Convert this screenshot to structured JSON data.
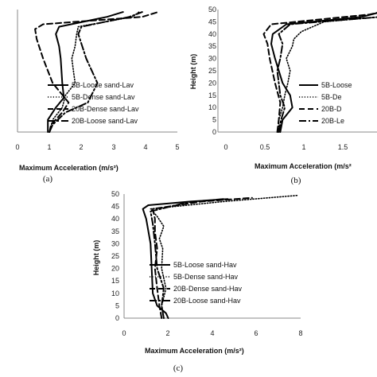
{
  "chart_data": [
    {
      "panel_label": "(a)",
      "type": "line",
      "xlabel": "Maximum Acceleration (m/s²)",
      "ylabel": "",
      "xlim": [
        0,
        5
      ],
      "ylim": [
        0,
        50
      ],
      "x_ticks": [
        "0",
        "1",
        "2",
        "3",
        "4",
        "5"
      ],
      "y_ticks": [],
      "legend_position": "right",
      "series": [
        {
          "name": "5B-Loose sand-Lav",
          "style": "solid",
          "points": [
            [
              0.95,
              0
            ],
            [
              0.95,
              5
            ],
            [
              1.2,
              10
            ],
            [
              1.45,
              14
            ],
            [
              1.4,
              20
            ],
            [
              1.35,
              30
            ],
            [
              1.3,
              35
            ],
            [
              1.2,
              40
            ],
            [
              1.3,
              43
            ],
            [
              2.8,
              47
            ],
            [
              3.3,
              49
            ]
          ]
        },
        {
          "name": "5B-Dense sand-Lav",
          "style": "dotted",
          "points": [
            [
              1.0,
              0
            ],
            [
              1.1,
              5
            ],
            [
              1.4,
              10
            ],
            [
              1.5,
              15
            ],
            [
              1.8,
              20
            ],
            [
              1.75,
              25
            ],
            [
              1.7,
              30
            ],
            [
              1.8,
              35
            ],
            [
              1.85,
              40
            ],
            [
              1.9,
              43
            ],
            [
              3.6,
              47
            ],
            [
              3.8,
              49
            ]
          ]
        },
        {
          "name": "20B-Dense sand-Lav",
          "style": "dashed",
          "points": [
            [
              1.0,
              0
            ],
            [
              1.05,
              3
            ],
            [
              1.4,
              8
            ],
            [
              1.6,
              12
            ],
            [
              1.1,
              20
            ],
            [
              0.8,
              30
            ],
            [
              0.6,
              38
            ],
            [
              0.55,
              42
            ],
            [
              0.8,
              44
            ],
            [
              3.9,
              47
            ],
            [
              4.4,
              49
            ]
          ]
        },
        {
          "name": "20B-Loose sand-Lav",
          "style": "dashdot",
          "points": [
            [
              1.0,
              0
            ],
            [
              1.1,
              3
            ],
            [
              1.5,
              8
            ],
            [
              2.2,
              12
            ],
            [
              2.5,
              20
            ],
            [
              2.15,
              30
            ],
            [
              1.9,
              40
            ],
            [
              2.0,
              43
            ],
            [
              3.5,
              47
            ],
            [
              3.9,
              49
            ]
          ]
        }
      ]
    },
    {
      "panel_label": "(b)",
      "type": "line",
      "xlabel": "Maximum Acceleration (m/s²",
      "ylabel": "Height (m)",
      "xlim": [
        0,
        2
      ],
      "ylim": [
        0,
        50
      ],
      "x_ticks": [
        "0",
        "0.5",
        "1",
        "1.5"
      ],
      "y_ticks": [
        "0",
        "5",
        "10",
        "15",
        "20",
        "25",
        "30",
        "35",
        "40",
        "45",
        "50"
      ],
      "legend_position": "right",
      "series": [
        {
          "name": "5B-Loose",
          "style": "solid",
          "points": [
            [
              0.72,
              0
            ],
            [
              0.75,
              5
            ],
            [
              0.88,
              10
            ],
            [
              0.85,
              15
            ],
            [
              0.75,
              20
            ],
            [
              0.65,
              30
            ],
            [
              0.6,
              36
            ],
            [
              0.62,
              40
            ],
            [
              0.8,
              44
            ],
            [
              1.8,
              47
            ],
            [
              2.05,
              49
            ]
          ]
        },
        {
          "name": "5B-De",
          "style": "dotted",
          "points": [
            [
              0.7,
              0
            ],
            [
              0.7,
              5
            ],
            [
              0.75,
              10
            ],
            [
              0.78,
              15
            ],
            [
              0.82,
              20
            ],
            [
              0.85,
              25
            ],
            [
              0.8,
              30
            ],
            [
              0.88,
              35
            ],
            [
              0.9,
              38
            ],
            [
              1.0,
              41
            ],
            [
              1.3,
              45
            ],
            [
              2.05,
              47
            ]
          ]
        },
        {
          "name": "20B-D",
          "style": "dashed",
          "points": [
            [
              0.68,
              0
            ],
            [
              0.7,
              5
            ],
            [
              0.72,
              12
            ],
            [
              0.65,
              20
            ],
            [
              0.58,
              30
            ],
            [
              0.55,
              36
            ],
            [
              0.5,
              40
            ],
            [
              0.6,
              44
            ],
            [
              1.9,
              48
            ],
            [
              2.05,
              49
            ]
          ]
        },
        {
          "name": "20B-Le",
          "style": "dashdot",
          "points": [
            [
              0.7,
              0
            ],
            [
              0.73,
              5
            ],
            [
              0.78,
              10
            ],
            [
              0.72,
              15
            ],
            [
              0.7,
              20
            ],
            [
              0.68,
              25
            ],
            [
              0.72,
              30
            ],
            [
              0.75,
              36
            ],
            [
              0.7,
              40
            ],
            [
              0.85,
              44
            ],
            [
              2.05,
              47
            ]
          ]
        }
      ]
    },
    {
      "panel_label": "(c)",
      "type": "line",
      "xlabel": "Maximum Acceleration (m/s²)",
      "ylabel": "Height (m)",
      "xlim": [
        0,
        8
      ],
      "ylim": [
        0,
        50
      ],
      "x_ticks": [
        "0",
        "2",
        "4",
        "6",
        "8"
      ],
      "y_ticks": [
        "0",
        "5",
        "10",
        "15",
        "20",
        "25",
        "30",
        "35",
        "40",
        "45",
        "50"
      ],
      "legend_position": "right",
      "series": [
        {
          "name": "5B-Loose sand-Hav",
          "style": "solid",
          "points": [
            [
              2.0,
              0
            ],
            [
              1.9,
              2
            ],
            [
              1.5,
              5
            ],
            [
              1.3,
              10
            ],
            [
              1.25,
              20
            ],
            [
              1.2,
              30
            ],
            [
              1.0,
              40
            ],
            [
              0.85,
              44
            ],
            [
              1.1,
              45.5
            ],
            [
              3.0,
              47
            ],
            [
              4.7,
              48
            ]
          ]
        },
        {
          "name": "5B-Dense sand-Hav",
          "style": "dotted",
          "points": [
            [
              1.8,
              0
            ],
            [
              1.7,
              5
            ],
            [
              1.9,
              12
            ],
            [
              1.7,
              20
            ],
            [
              1.75,
              28
            ],
            [
              1.6,
              32
            ],
            [
              1.8,
              37
            ],
            [
              1.5,
              41
            ],
            [
              1.2,
              44
            ],
            [
              4.5,
              47
            ],
            [
              7.9,
              49.5
            ]
          ]
        },
        {
          "name": "20B-Dense sand-Hav",
          "style": "dashed",
          "points": [
            [
              1.7,
              0
            ],
            [
              1.6,
              5
            ],
            [
              1.5,
              12
            ],
            [
              1.4,
              20
            ],
            [
              1.5,
              28
            ],
            [
              1.4,
              35
            ],
            [
              1.4,
              40
            ],
            [
              1.3,
              44
            ],
            [
              3.5,
              47
            ],
            [
              5.8,
              48.5
            ]
          ]
        },
        {
          "name": "20B-Loose sand-Hav",
          "style": "dashdot",
          "points": [
            [
              1.8,
              0
            ],
            [
              1.7,
              5
            ],
            [
              1.8,
              12
            ],
            [
              1.5,
              20
            ],
            [
              1.4,
              30
            ],
            [
              1.3,
              38
            ],
            [
              1.2,
              43
            ],
            [
              2.8,
              46.5
            ],
            [
              4.5,
              48
            ]
          ]
        }
      ]
    }
  ]
}
